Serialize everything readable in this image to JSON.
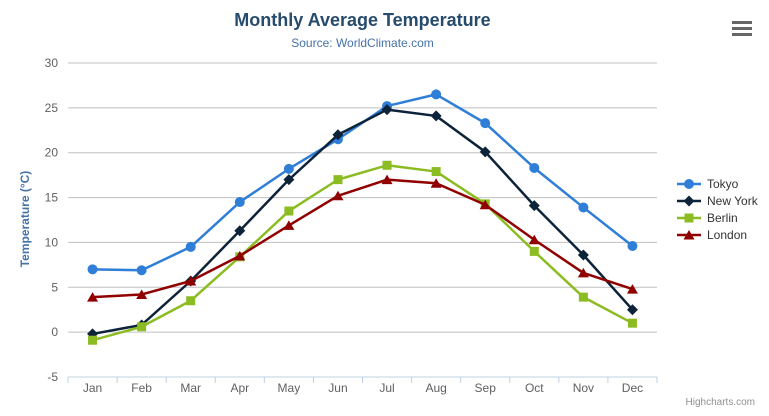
{
  "chart": {
    "title": "Monthly Average Temperature",
    "subtitle": "Source: WorldClimate.com",
    "credits": "Highcharts.com",
    "menu_icon": "hamburger-export-menu"
  },
  "theme": {
    "background": "#ffffff",
    "title_color": "#274b6d",
    "subtitle_color": "#4572A7",
    "axis_title_color": "#4572A7",
    "tick_label_color": "#606060",
    "grid_color": "#C0C0C0",
    "axis_line_color": "#C0D0E0",
    "legend_text_color": "#333333",
    "credits_color": "#909090",
    "menu_icon_color": "#666666"
  },
  "chart_data": {
    "type": "line",
    "title": "Monthly Average Temperature",
    "subtitle": "Source: WorldClimate.com",
    "xlabel": "",
    "ylabel": "Temperature (°C)",
    "ylim": [
      -5,
      30
    ],
    "ytick_step": 5,
    "grid": true,
    "legend_position": "right",
    "categories": [
      "Jan",
      "Feb",
      "Mar",
      "Apr",
      "May",
      "Jun",
      "Jul",
      "Aug",
      "Sep",
      "Oct",
      "Nov",
      "Dec"
    ],
    "series": [
      {
        "name": "Tokyo",
        "color": "#2f7ed8",
        "marker": "circle",
        "values": [
          7.0,
          6.9,
          9.5,
          14.5,
          18.2,
          21.5,
          25.2,
          26.5,
          23.3,
          18.3,
          13.9,
          9.6
        ]
      },
      {
        "name": "New York",
        "color": "#0d233a",
        "marker": "diamond",
        "values": [
          -0.2,
          0.8,
          5.7,
          11.3,
          17.0,
          22.0,
          24.8,
          24.1,
          20.1,
          14.1,
          8.6,
          2.5
        ]
      },
      {
        "name": "Berlin",
        "color": "#8bbc21",
        "marker": "square",
        "values": [
          -0.9,
          0.6,
          3.5,
          8.4,
          13.5,
          17.0,
          18.6,
          17.9,
          14.3,
          9.0,
          3.9,
          1.0
        ]
      },
      {
        "name": "London",
        "color": "#910000",
        "marker": "triangle",
        "values": [
          3.9,
          4.2,
          5.7,
          8.5,
          11.9,
          15.2,
          17.0,
          16.6,
          14.2,
          10.3,
          6.6,
          4.8
        ]
      }
    ]
  }
}
